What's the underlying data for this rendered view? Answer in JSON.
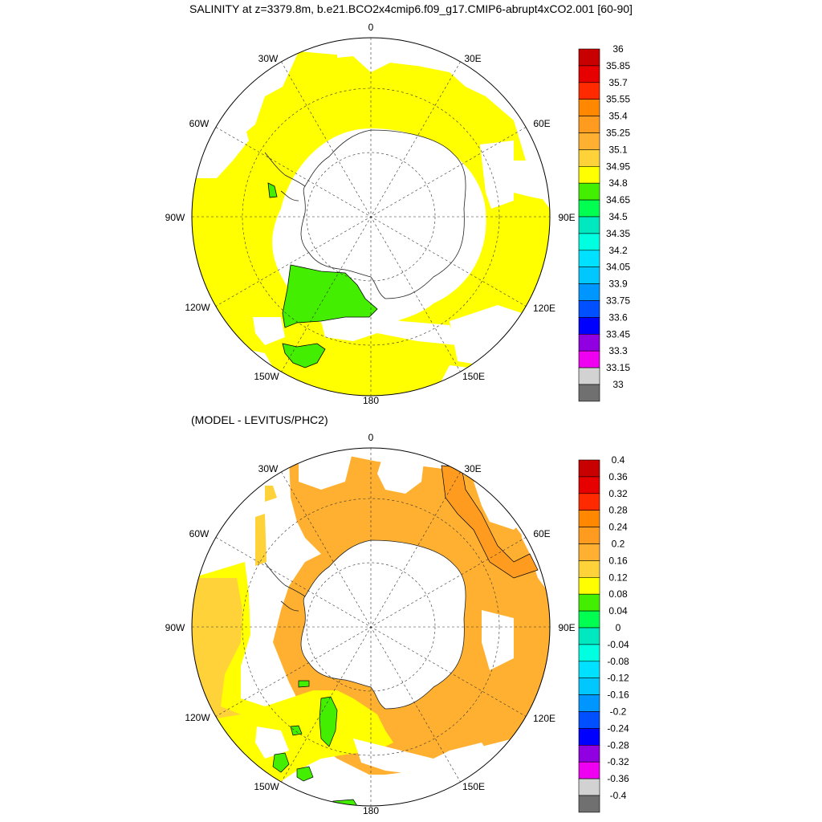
{
  "title": "SALINITY at z=3379.8m, b.e21.BCO2x4cmip6.f09_g17.CMIP6-abrupt4xCO2.001 [60-90]",
  "subtitle": "(MODEL - LEVITUS/PHC2)",
  "longitude_labels": [
    {
      "key": "0",
      "text": "0"
    },
    {
      "key": "30E",
      "text": "30E"
    },
    {
      "key": "60E",
      "text": "60E"
    },
    {
      "key": "90E",
      "text": "90E"
    },
    {
      "key": "120E",
      "text": "120E"
    },
    {
      "key": "150E",
      "text": "150E"
    },
    {
      "key": "180",
      "text": "180"
    },
    {
      "key": "150W",
      "text": "150W"
    },
    {
      "key": "120W",
      "text": "120W"
    },
    {
      "key": "90W",
      "text": "90W"
    },
    {
      "key": "60W",
      "text": "60W"
    },
    {
      "key": "30W",
      "text": "30W"
    }
  ],
  "maps": [
    {
      "name": "salinity",
      "colorbar_labels": [
        "36",
        "35.85",
        "35.7",
        "35.55",
        "35.4",
        "35.25",
        "35.1",
        "34.95",
        "34.8",
        "34.65",
        "34.5",
        "34.35",
        "34.2",
        "34.05",
        "33.9",
        "33.75",
        "33.6",
        "33.45",
        "33.3",
        "33.15",
        "33"
      ],
      "colorbar_colors": [
        "#c80000",
        "#e60000",
        "#ff2a00",
        "#ff8800",
        "#ff9b1e",
        "#ffb030",
        "#ffd23a",
        "#ffff00",
        "#44ee00",
        "#00ff50",
        "#00e8c0",
        "#00ffe0",
        "#00e0ff",
        "#00c8ff",
        "#0096ff",
        "#0050ff",
        "#0000ff",
        "#9000e0",
        "#f000f0",
        "#d2d2d2",
        "#707070"
      ],
      "regions": [
        {
          "color": "#ffff00",
          "label": "34.95-35.1"
        },
        {
          "color": "#44ee00",
          "label": "34.8-34.95"
        }
      ]
    },
    {
      "name": "model-minus-levitus",
      "colorbar_labels": [
        "0.4",
        "0.36",
        "0.32",
        "0.28",
        "0.24",
        "0.2",
        "0.16",
        "0.12",
        "0.08",
        "0.04",
        "0",
        "-0.04",
        "-0.08",
        "-0.12",
        "-0.16",
        "-0.2",
        "-0.24",
        "-0.28",
        "-0.32",
        "-0.36",
        "-0.4"
      ],
      "colorbar_colors": [
        "#c80000",
        "#e60000",
        "#ff2a00",
        "#ff8800",
        "#ff9b1e",
        "#ffb030",
        "#ffd23a",
        "#ffff00",
        "#44ee00",
        "#00ff50",
        "#00e8c0",
        "#00ffe0",
        "#00e0ff",
        "#00c8ff",
        "#0096ff",
        "#0050ff",
        "#0000ff",
        "#9000e0",
        "#f000f0",
        "#d2d2d2",
        "#707070"
      ],
      "regions": [
        {
          "color": "#ffb030",
          "label": "0.2-0.24"
        },
        {
          "color": "#ffd23a",
          "label": "0.16-0.2"
        },
        {
          "color": "#ffff00",
          "label": "0.12-0.16"
        },
        {
          "color": "#44ee00",
          "label": "0.08-0.12"
        },
        {
          "color": "#ff9b1e",
          "label": "0.24-0.28"
        }
      ]
    }
  ]
}
